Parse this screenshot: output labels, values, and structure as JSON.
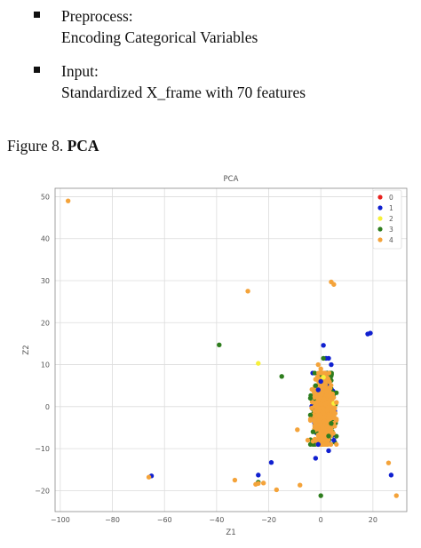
{
  "bullets": [
    {
      "lines": [
        "Preprocess:",
        "Encoding Categorical Variables"
      ]
    },
    {
      "lines": [
        "Input:",
        "Standardized X_frame with 70 features"
      ]
    }
  ],
  "caption": {
    "prefix": "Figure 8. ",
    "name": "PCA"
  },
  "chart_data": {
    "type": "scatter",
    "title": "PCA",
    "xlabel": "Z1",
    "ylabel": "Z2",
    "xlim": [
      -102,
      33
    ],
    "ylim": [
      -25,
      52
    ],
    "xticks": [
      -100,
      -80,
      -60,
      -40,
      -20,
      0,
      20
    ],
    "yticks": [
      -20,
      -10,
      0,
      10,
      20,
      30,
      40,
      50
    ],
    "grid": true,
    "legend_position": "top-right",
    "series": [
      {
        "name": "0",
        "color": "#e8211e",
        "points": []
      },
      {
        "name": "1",
        "color": "#1020d0",
        "points": [
          [
            -65,
            -16.5
          ],
          [
            -24,
            -16.3
          ],
          [
            -19,
            -13.3
          ],
          [
            1,
            14.6
          ],
          [
            2,
            11.5
          ],
          [
            3,
            11.5
          ],
          [
            4,
            10
          ],
          [
            18,
            17.3
          ],
          [
            19,
            17.5
          ],
          [
            0,
            6
          ],
          [
            -1,
            4
          ],
          [
            3,
            -10.5
          ],
          [
            5,
            -8
          ],
          [
            -2,
            -12.3
          ],
          [
            27,
            -16.3
          ],
          [
            -1,
            -9
          ]
        ]
      },
      {
        "name": "2",
        "color": "#f6f03a",
        "points": [
          [
            -24,
            10.3
          ],
          [
            5,
            0.8
          ],
          [
            1,
            7
          ]
        ]
      },
      {
        "name": "3",
        "color": "#2e7d1e",
        "points": [
          [
            -39,
            14.7
          ],
          [
            -15,
            7.2
          ],
          [
            -24,
            -18
          ],
          [
            0,
            -21.2
          ],
          [
            1,
            11.5
          ],
          [
            -2,
            5
          ],
          [
            -4,
            2
          ],
          [
            -4,
            -2
          ],
          [
            -3,
            -6
          ],
          [
            3,
            -7
          ],
          [
            4,
            -4
          ]
        ]
      },
      {
        "name": "4",
        "color": "#f4a33a",
        "points": [
          [
            -97,
            49
          ],
          [
            -28,
            27.5
          ],
          [
            4,
            29.7
          ],
          [
            5,
            29.1
          ],
          [
            -66,
            -16.8
          ],
          [
            -24,
            -18.3
          ],
          [
            -25,
            -18.5
          ],
          [
            -33,
            -17.5
          ],
          [
            -22,
            -18.2
          ],
          [
            -17,
            -19.8
          ],
          [
            -8,
            -18.7
          ],
          [
            26,
            -13.4
          ],
          [
            29,
            -21.2
          ],
          [
            -9,
            -5.5
          ],
          [
            -1,
            10
          ],
          [
            -2,
            6.5
          ],
          [
            0,
            9
          ],
          [
            -5,
            -8
          ],
          [
            -4,
            -3
          ],
          [
            5,
            -2
          ],
          [
            6,
            1
          ]
        ]
      }
    ]
  }
}
